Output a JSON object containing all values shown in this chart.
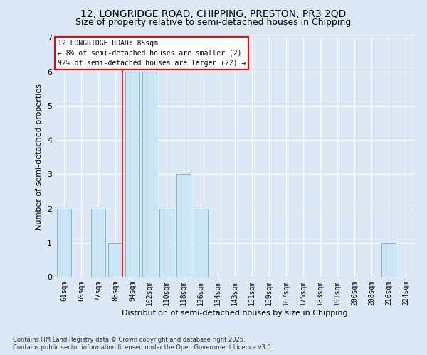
{
  "title1": "12, LONGRIDGE ROAD, CHIPPING, PRESTON, PR3 2QD",
  "title2": "Size of property relative to semi-detached houses in Chipping",
  "xlabel": "Distribution of semi-detached houses by size in Chipping",
  "ylabel": "Number of semi-detached properties",
  "categories": [
    "61sqm",
    "69sqm",
    "77sqm",
    "86sqm",
    "94sqm",
    "102sqm",
    "110sqm",
    "118sqm",
    "126sqm",
    "134sqm",
    "143sqm",
    "151sqm",
    "159sqm",
    "167sqm",
    "175sqm",
    "183sqm",
    "191sqm",
    "200sqm",
    "208sqm",
    "216sqm",
    "224sqm"
  ],
  "values": [
    2,
    0,
    2,
    1,
    6,
    6,
    2,
    3,
    2,
    0,
    0,
    0,
    0,
    0,
    0,
    0,
    0,
    0,
    0,
    1,
    0
  ],
  "bar_color": "#cce5f5",
  "bar_edge_color": "#7db8d8",
  "red_line_index": 3,
  "annotation_title": "12 LONGRIDGE ROAD: 85sqm",
  "annotation_line1": "← 8% of semi-detached houses are smaller (2)",
  "annotation_line2": "92% of semi-detached houses are larger (22) →",
  "footer1": "Contains HM Land Registry data © Crown copyright and database right 2025.",
  "footer2": "Contains public sector information licensed under the Open Government Licence v3.0.",
  "ylim": [
    0,
    7
  ],
  "yticks": [
    0,
    1,
    2,
    3,
    4,
    5,
    6,
    7
  ],
  "bg_color": "#dce8f5",
  "grid_color": "#ffffff",
  "title_fontsize": 10,
  "subtitle_fontsize": 9
}
